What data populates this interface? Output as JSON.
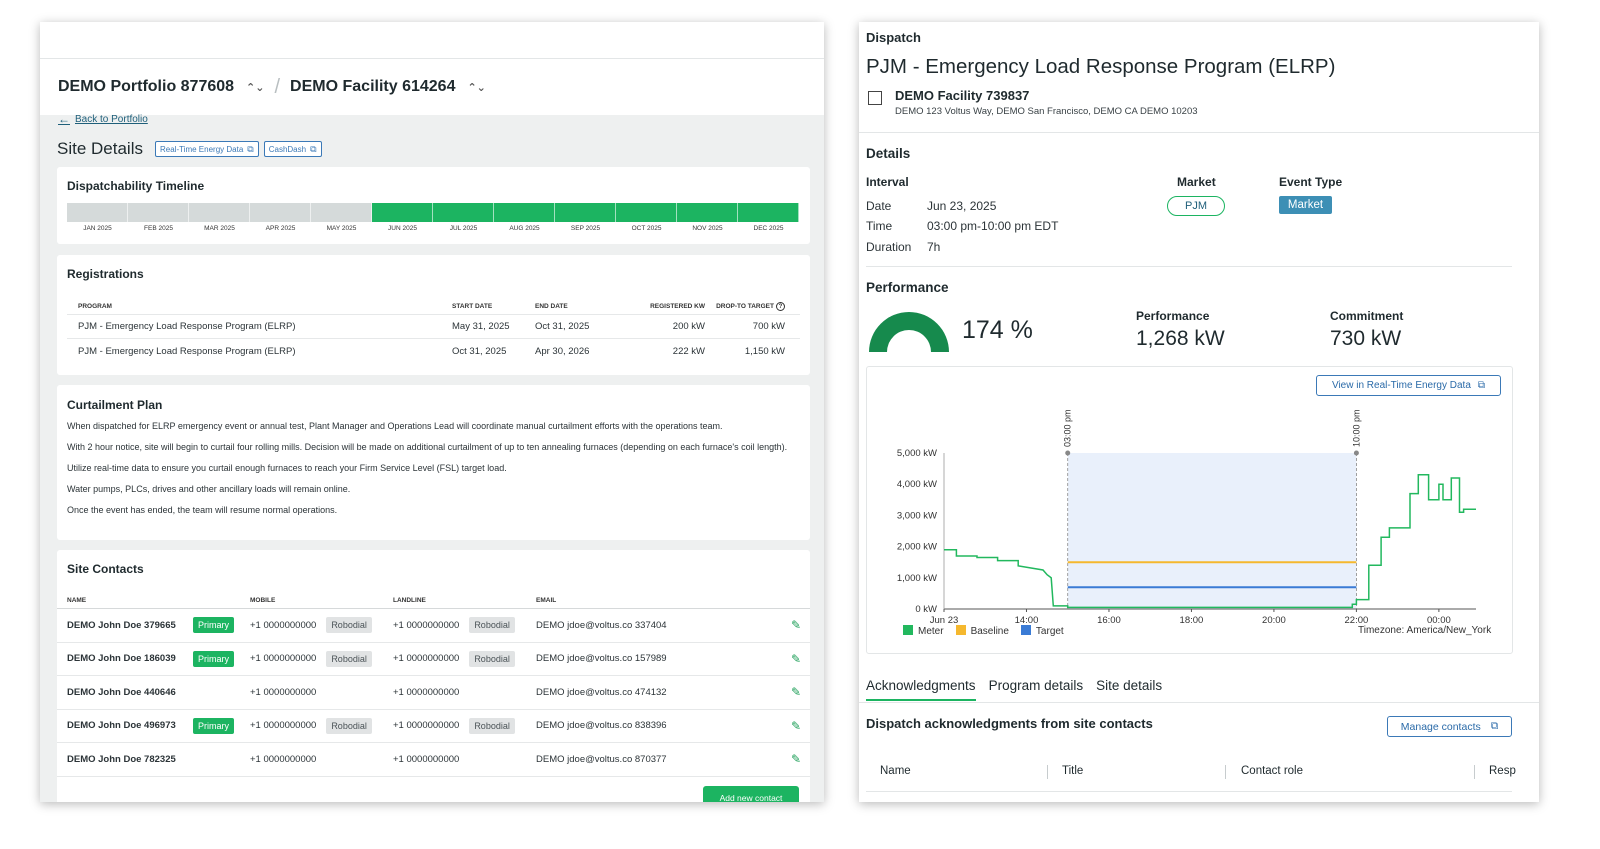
{
  "left": {
    "header": {
      "portfolio": "DEMO Portfolio 877608",
      "facility": "DEMO Facility 614264",
      "separator": "/",
      "chevron": "⌃⌄"
    },
    "back_link": "Back to Portfolio",
    "site_title": "Site Details",
    "chips": [
      "Real-Time Energy Data",
      "CashDash"
    ],
    "timeline": {
      "title": "Dispatchability Timeline",
      "months": [
        "JAN 2025",
        "FEB 2025",
        "MAR 2025",
        "APR 2025",
        "MAY 2025",
        "JUN 2025",
        "JUL 2025",
        "AUG 2025",
        "SEP 2025",
        "OCT 2025",
        "NOV 2025",
        "DEC 2025"
      ],
      "active": [
        false,
        false,
        false,
        false,
        false,
        true,
        true,
        true,
        true,
        true,
        true,
        true
      ],
      "active_color": "#1cb461",
      "inactive_color": "#d5dada"
    },
    "registrations": {
      "title": "Registrations",
      "headers": [
        "PROGRAM",
        "START DATE",
        "END DATE",
        "REGISTERED KW",
        "DROP-TO TARGET"
      ],
      "rows": [
        [
          "PJM - Emergency Load Response Program (ELRP)",
          "May 31, 2025",
          "Oct 31, 2025",
          "200 kW",
          "700 kW"
        ],
        [
          "PJM - Emergency Load Response Program (ELRP)",
          "Oct 31, 2025",
          "Apr 30, 2026",
          "222 kW",
          "1,150 kW"
        ]
      ]
    },
    "curtailment": {
      "title": "Curtailment Plan",
      "paragraphs": [
        "When dispatched for ELRP emergency event or annual test, Plant Manager and Operations Lead will coordinate manual curtailment efforts with the operations team.",
        "With 2 hour notice, site will begin to curtail four rolling mills. Decision will be made on additional curtailment of up to ten annealing furnaces (depending on each furnace's coil length).",
        "Utilize real-time data to ensure you curtail enough furnaces to reach your Firm Service Level (FSL) target load.",
        "Water pumps, PLCs, drives and other ancillary loads will remain online.",
        "Once the event has ended, the team will resume normal operations."
      ]
    },
    "contacts": {
      "title": "Site Contacts",
      "headers": [
        "NAME",
        "MOBILE",
        "LANDLINE",
        "EMAIL"
      ],
      "rows": [
        {
          "name": "DEMO John Doe 379665",
          "primary": "Primary",
          "mobile": "+1 0000000000",
          "mobile_tag": "Robodial",
          "landline": "+1 0000000000",
          "landline_tag": "Robodial",
          "email": "DEMO jdoe@voltus.co 337404"
        },
        {
          "name": "DEMO John Doe 186039",
          "primary": "Primary",
          "mobile": "+1 0000000000",
          "mobile_tag": "Robodial",
          "landline": "+1 0000000000",
          "landline_tag": "Robodial",
          "email": "DEMO jdoe@voltus.co 157989"
        },
        {
          "name": "DEMO John Doe 440646",
          "primary": "",
          "mobile": "+1 0000000000",
          "mobile_tag": "",
          "landline": "+1 0000000000",
          "landline_tag": "",
          "email": "DEMO jdoe@voltus.co 474132"
        },
        {
          "name": "DEMO John Doe 496973",
          "primary": "Primary",
          "mobile": "+1 0000000000",
          "mobile_tag": "Robodial",
          "landline": "+1 0000000000",
          "landline_tag": "Robodial",
          "email": "DEMO jdoe@voltus.co 838396"
        },
        {
          "name": "DEMO John Doe 782325",
          "primary": "",
          "mobile": "+1 0000000000",
          "mobile_tag": "",
          "landline": "+1 0000000000",
          "landline_tag": "",
          "email": "DEMO jdoe@voltus.co 870377"
        }
      ],
      "add_button": "Add new contact"
    }
  },
  "right": {
    "kicker": "Dispatch",
    "title": "PJM - Emergency Load Response Program (ELRP)",
    "facility_name": "DEMO Facility 739837",
    "facility_address": "DEMO 123 Voltus Way, DEMO San Francisco, DEMO CA DEMO 10203",
    "details": {
      "title": "Details",
      "interval_label": "Interval",
      "date_label": "Date",
      "date_value": "Jun 23, 2025",
      "time_label": "Time",
      "time_value": "03:00 pm-10:00 pm EDT",
      "duration_label": "Duration",
      "duration_value": "7h",
      "market_label": "Market",
      "market_value": "PJM",
      "event_type_label": "Event Type",
      "event_type_value": "Market"
    },
    "performance": {
      "title": "Performance",
      "percent_text": "174 %",
      "percent": 174,
      "perf_label": "Performance",
      "perf_value": "1,268 kW",
      "commit_label": "Commitment",
      "commit_value": "730 kW"
    },
    "view_button": "View in Real-Time Energy Data",
    "tabs": [
      "Acknowledgments",
      "Program details",
      "Site details"
    ],
    "ack_title": "Dispatch acknowledgments from site contacts",
    "manage_button": "Manage contacts",
    "table_headers": [
      "Name",
      "Title",
      "Contact role",
      "Resp"
    ]
  },
  "chart_data": {
    "type": "line",
    "title": "",
    "xlabel": "",
    "ylabel": "",
    "x_ticks": [
      "Jun 23",
      "14:00",
      "16:00",
      "18:00",
      "20:00",
      "22:00",
      "00:00"
    ],
    "y_ticks": [
      "0 kW",
      "1,000 kW",
      "2,000 kW",
      "3,000 kW",
      "4,000 kW",
      "5,000 kW"
    ],
    "xlim_hours": [
      12,
      24.9
    ],
    "ylim": [
      0,
      5000
    ],
    "event_window": {
      "start_hour": 15,
      "end_hour": 22,
      "start_label": "03:00 pm",
      "end_label": "10:00 pm"
    },
    "series": [
      {
        "name": "Meter",
        "color": "#22b85e",
        "points": [
          [
            12,
            1900
          ],
          [
            12.3,
            1900
          ],
          [
            12.3,
            1700
          ],
          [
            12.8,
            1700
          ],
          [
            12.8,
            1650
          ],
          [
            13.3,
            1650
          ],
          [
            13.3,
            1550
          ],
          [
            13.8,
            1550
          ],
          [
            13.8,
            1380
          ],
          [
            14.4,
            1250
          ],
          [
            14.5,
            1100
          ],
          [
            14.6,
            1000
          ],
          [
            14.65,
            100
          ],
          [
            15.0,
            100
          ],
          [
            15.0,
            50
          ],
          [
            21.9,
            50
          ],
          [
            21.9,
            150
          ],
          [
            22.0,
            150
          ],
          [
            22.0,
            300
          ],
          [
            22.3,
            300
          ],
          [
            22.3,
            1400
          ],
          [
            22.6,
            1400
          ],
          [
            22.6,
            2300
          ],
          [
            22.8,
            2300
          ],
          [
            22.8,
            2600
          ],
          [
            23.3,
            2600
          ],
          [
            23.3,
            3700
          ],
          [
            23.5,
            3700
          ],
          [
            23.5,
            4300
          ],
          [
            23.75,
            4300
          ],
          [
            23.75,
            3500
          ],
          [
            24.0,
            3500
          ],
          [
            24.0,
            4000
          ],
          [
            24.1,
            4000
          ],
          [
            24.1,
            3500
          ],
          [
            24.3,
            3500
          ],
          [
            24.3,
            4200
          ],
          [
            24.5,
            4200
          ],
          [
            24.5,
            3100
          ],
          [
            24.6,
            3100
          ],
          [
            24.6,
            3200
          ],
          [
            24.9,
            3200
          ]
        ]
      },
      {
        "name": "Baseline",
        "color": "#f5b82e",
        "points": [
          [
            15,
            1500
          ],
          [
            22,
            1500
          ]
        ]
      },
      {
        "name": "Target",
        "color": "#3a7bd5",
        "points": [
          [
            15,
            700
          ],
          [
            22,
            700
          ]
        ]
      }
    ],
    "legend": [
      "Meter",
      "Baseline",
      "Target"
    ],
    "legend_position": "bottom-left",
    "timezone": "Timezone: America/New_York"
  }
}
